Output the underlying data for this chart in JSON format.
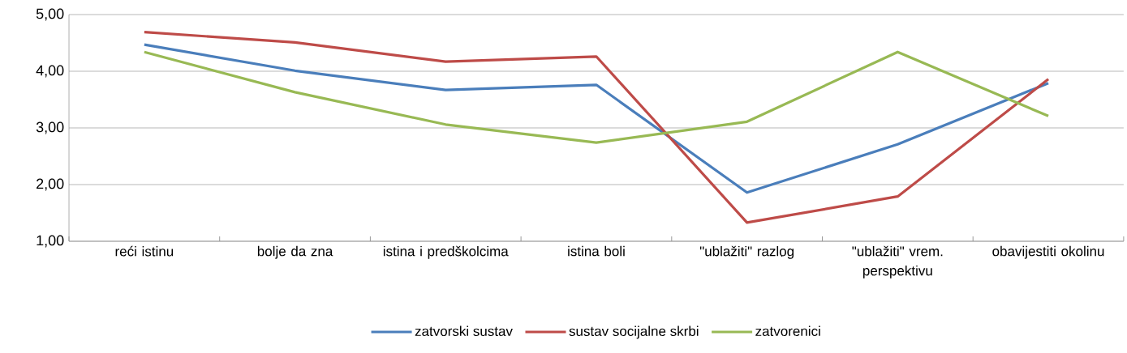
{
  "chart_data": {
    "type": "line",
    "categories": [
      "reći istinu",
      "bolje da zna",
      "istina i predškolcima",
      "istina boli",
      "\"ublažiti\" razlog",
      "\"ublažiti\" vrem. perspektivu",
      "obavijestiti okolinu"
    ],
    "series": [
      {
        "name": "zatvorski sustav",
        "color": "#4a7ebb",
        "values": [
          4.47,
          4.01,
          3.67,
          3.76,
          1.86,
          2.71,
          3.79
        ]
      },
      {
        "name": "sustav socijalne skrbi",
        "color": "#be4b48",
        "values": [
          4.69,
          4.51,
          4.17,
          4.26,
          1.33,
          1.79,
          3.86
        ]
      },
      {
        "name": "zatvorenici",
        "color": "#98b954",
        "values": [
          4.34,
          3.63,
          3.06,
          2.74,
          3.11,
          4.34,
          3.21
        ]
      }
    ],
    "ylim": [
      1,
      5
    ],
    "yticks": [
      {
        "value": 1,
        "label": "1,00"
      },
      {
        "value": 2,
        "label": "2,00"
      },
      {
        "value": 3,
        "label": "3,00"
      },
      {
        "value": 4,
        "label": "4,00"
      },
      {
        "value": 5,
        "label": "5,00"
      }
    ],
    "grid": "y",
    "legend": "bottom"
  }
}
